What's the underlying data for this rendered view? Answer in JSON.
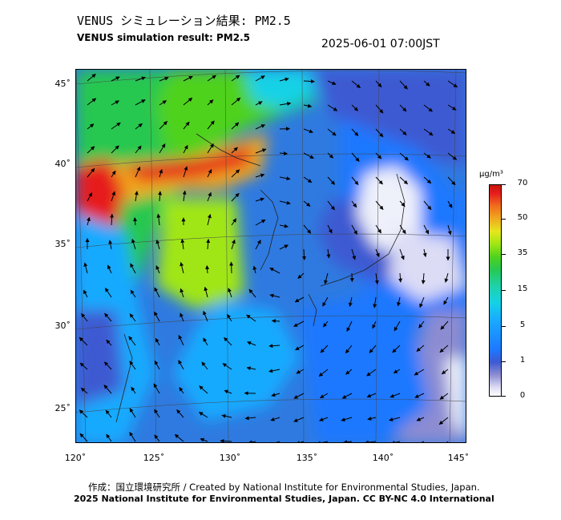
{
  "header": {
    "title_jp": "VENUS シミュレーション結果: PM2.5",
    "title_en": "VENUS simulation result: PM2.5",
    "timestamp": "2025-06-01 07:00JST"
  },
  "map": {
    "latitude_labels": [
      "45˚",
      "40˚",
      "35˚",
      "30˚",
      "25˚"
    ],
    "longitude_labels": [
      "120˚",
      "125˚",
      "130˚",
      "135˚",
      "140˚",
      "145˚"
    ],
    "field_colors": {
      "low": "#3c5ad2",
      "mid": "#19aaff",
      "green": "#28c850",
      "yellow": "#e6e61e",
      "high": "#e61e1e",
      "clean": "#eef0fa"
    }
  },
  "colorbar": {
    "unit": "μg/m³",
    "ticks": [
      "70",
      "50",
      "35",
      "15",
      "5",
      "1",
      "0"
    ]
  },
  "footer": {
    "credit_jp_en": "作成：国立環境研究所 / Created by National Institute for Environmental Studies, Japan.",
    "copyright": "2025 National Institute for Environmental Studies, Japan. CC BY-NC 4.0 International"
  }
}
